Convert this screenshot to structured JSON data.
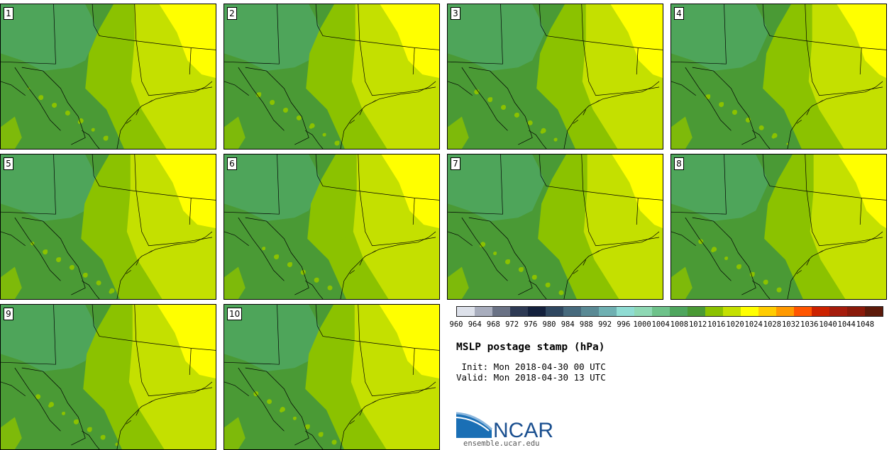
{
  "panels": [
    {
      "label": "1"
    },
    {
      "label": "2"
    },
    {
      "label": "3"
    },
    {
      "label": "4"
    },
    {
      "label": "5"
    },
    {
      "label": "6"
    },
    {
      "label": "7"
    },
    {
      "label": "8"
    },
    {
      "label": "9"
    },
    {
      "label": "10"
    }
  ],
  "colorbar": {
    "colors": [
      "#dde1ea",
      "#a8adbd",
      "#6a7285",
      "#2e3a54",
      "#14213d",
      "#2f4760",
      "#476a7d",
      "#5a8a95",
      "#6fb0b2",
      "#8fdcd3",
      "#8ed8b4",
      "#6ec28a",
      "#4fa65e",
      "#4a9a35",
      "#8bc200",
      "#c4e000",
      "#ffff00",
      "#ffcc00",
      "#ff9900",
      "#ff5500",
      "#cc2200",
      "#a51c0c",
      "#8a1a0a",
      "#5c1a0a"
    ],
    "ticks": [
      "960",
      "964",
      "968",
      "972",
      "976",
      "980",
      "984",
      "988",
      "992",
      "996",
      "1000",
      "1004",
      "1008",
      "1012",
      "1016",
      "1020",
      "1024",
      "1028",
      "1032",
      "1036",
      "1040",
      "1044",
      "1048"
    ]
  },
  "title": "MSLP postage stamp (hPa)",
  "init": " Init: Mon 2018-04-30 00 UTC",
  "valid": "Valid: Mon 2018-04-30 13 UTC",
  "logo": {
    "text": "NCAR",
    "url": "ensemble.ucar.edu"
  }
}
